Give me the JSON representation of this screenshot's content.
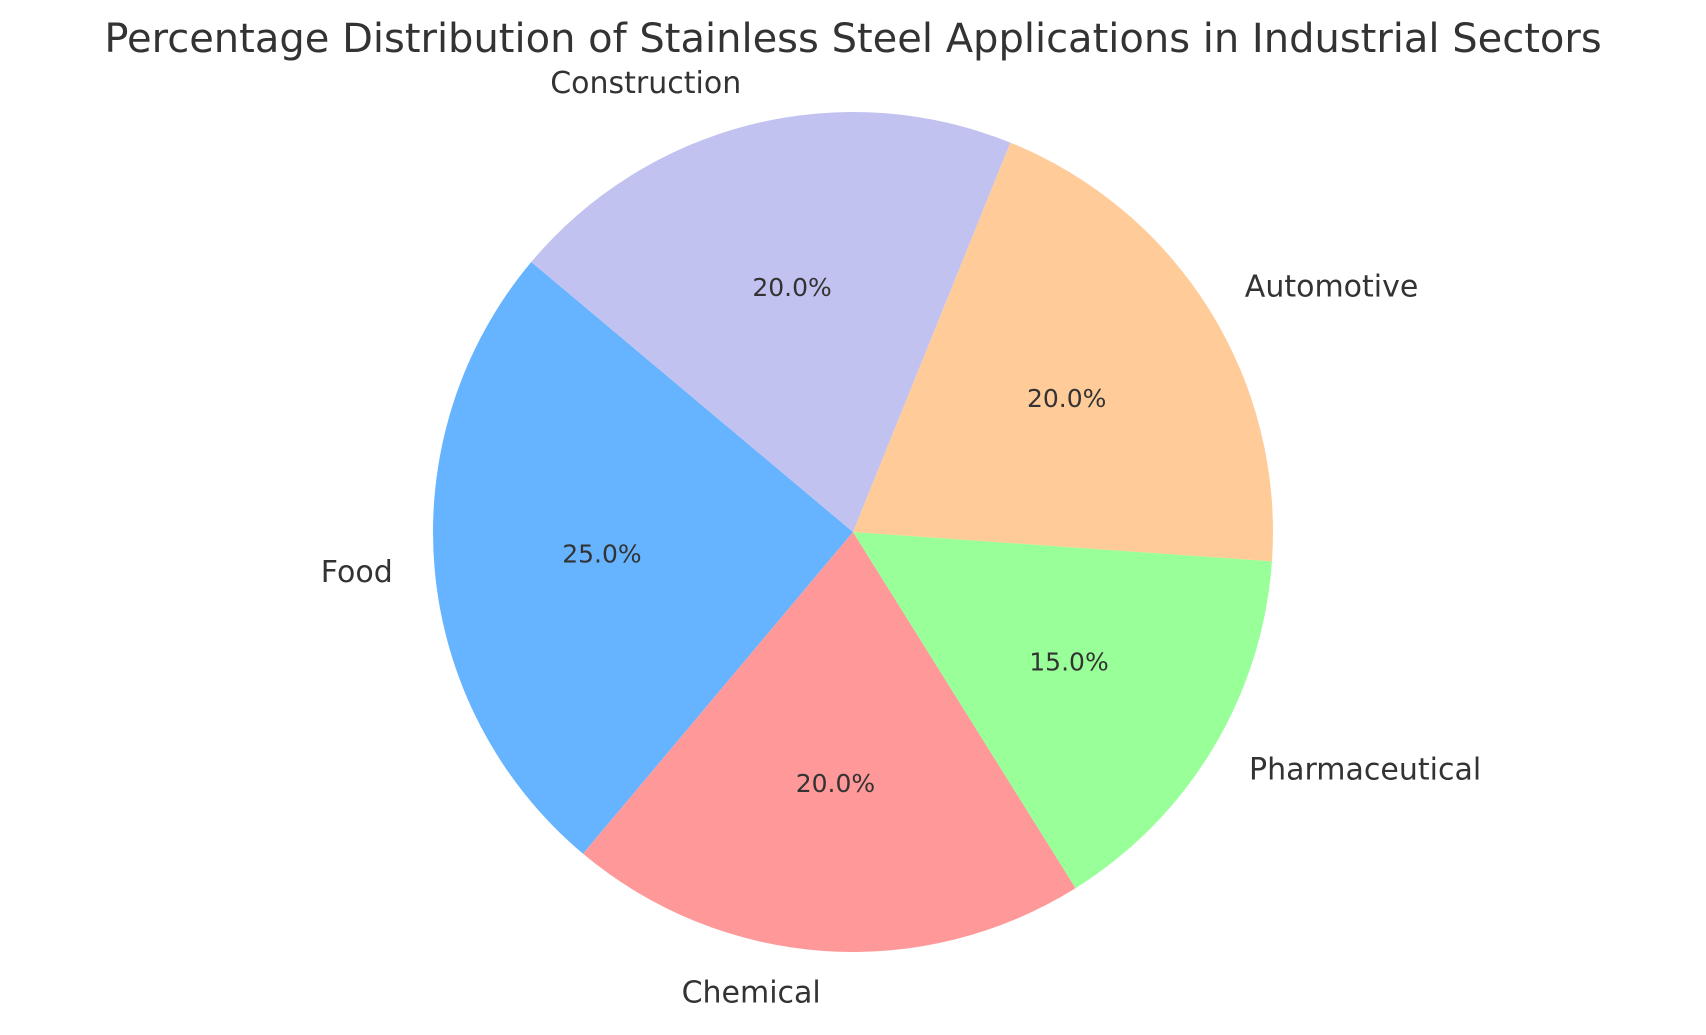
{
  "chart_data": {
    "type": "pie",
    "title": "Percentage Distribution of Stainless Steel Applications in Industrial Sectors",
    "categories": [
      "Food",
      "Chemical",
      "Pharmaceutical",
      "Automotive",
      "Construction"
    ],
    "values": [
      25,
      20,
      15,
      20,
      20
    ],
    "percent_labels": [
      "25.0%",
      "20.0%",
      "15.0%",
      "20.0%",
      "20.0%"
    ],
    "colors": [
      "#66b3ff",
      "#ff9999",
      "#99ff99",
      "#ffcc99",
      "#c2c2f0"
    ],
    "start_angle_deg": 140,
    "direction": "counterclockwise",
    "legend": "none"
  }
}
